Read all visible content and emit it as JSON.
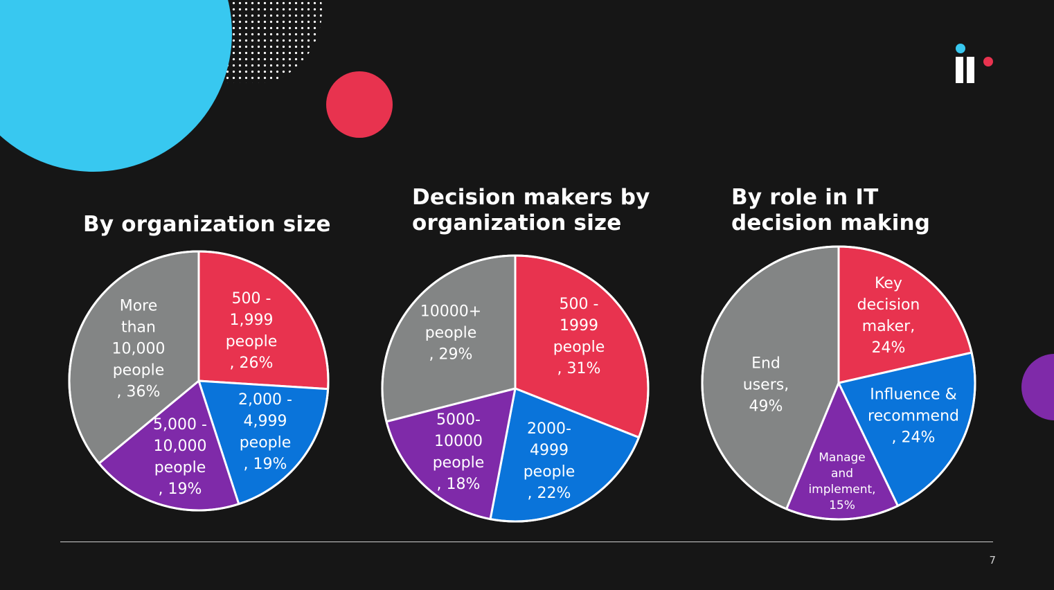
{
  "slide": {
    "page_number": "7"
  },
  "colors": {
    "red": "#e8334f",
    "blue": "#0a74da",
    "purple": "#7f2aa9",
    "gray": "#838585",
    "cyan": "#38c8f0",
    "edge": "#ffffff"
  },
  "logo": {
    "name": "logo-icon"
  },
  "chart_data": [
    {
      "type": "pie",
      "title": "By organization size",
      "categories": [
        "500 - 1,999 people",
        "2,000 - 4,999 people",
        "5,000 - 10,000 people",
        "More than 10,000 people"
      ],
      "values": [
        26,
        19,
        19,
        36
      ],
      "colors": [
        "#e8334f",
        "#0a74da",
        "#7f2aa9",
        "#838585"
      ],
      "labels": [
        "500 -\n1,999\npeople\n, 26%",
        "2,000 -\n4,999\npeople\n, 19%",
        "5,000 -\n10,000\npeople\n, 19%",
        "More\nthan\n10,000\npeople\n, 36%"
      ]
    },
    {
      "type": "pie",
      "title": "Decision makers by\norganization size",
      "categories": [
        "500 - 1999 people",
        "2000-4999 people",
        "5000-10000 people",
        "10000+ people"
      ],
      "values": [
        31,
        22,
        18,
        29
      ],
      "colors": [
        "#e8334f",
        "#0a74da",
        "#7f2aa9",
        "#838585"
      ],
      "labels": [
        "500 -\n1999\npeople\n, 31%",
        "2000-\n4999\npeople\n, 22%",
        "5000-\n10000\npeople\n, 18%",
        "10000+\npeople\n, 29%"
      ]
    },
    {
      "type": "pie",
      "title": "By role in IT\ndecision making",
      "categories": [
        "Key decision maker",
        "Influence & recommend",
        "Manage and implement",
        "End users"
      ],
      "values": [
        24,
        24,
        15,
        49
      ],
      "colors": [
        "#e8334f",
        "#0a74da",
        "#7f2aa9",
        "#838585"
      ],
      "labels": [
        "Key\ndecision\nmaker,\n24%",
        "Influence &\nrecommend\n, 24%",
        "Manage\nand\nimplement,\n15%",
        "End\nusers,\n49%"
      ]
    }
  ]
}
